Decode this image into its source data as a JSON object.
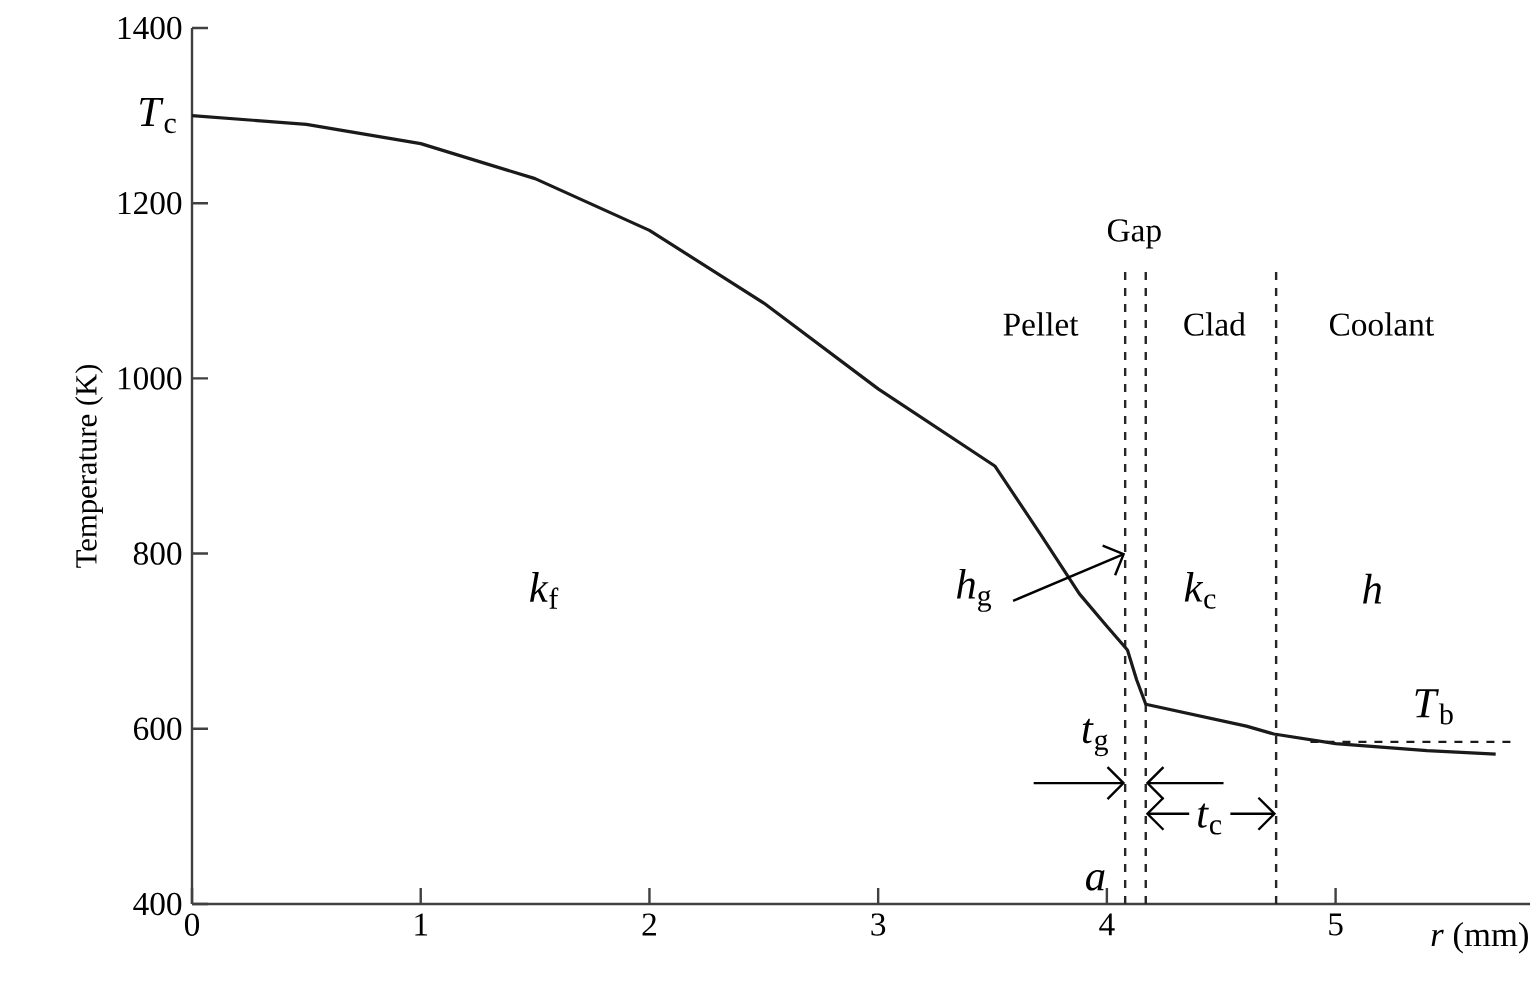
{
  "chart_data": {
    "type": "line",
    "xlabel": "*r* (mm)",
    "ylabel": "Temperature (K)",
    "xlim": [
      0,
      5.85
    ],
    "ylim": [
      400,
      1400
    ],
    "xticks": [
      0,
      1,
      2,
      3,
      4,
      5
    ],
    "yticks": [
      400,
      600,
      800,
      1000,
      1200,
      1400
    ],
    "grid": false,
    "legend": false,
    "marker": "none",
    "series": [
      {
        "color": "#1a1a1a",
        "line_style": "solid",
        "x": [
          0,
          0.5,
          1,
          1.5,
          2,
          2.5,
          3,
          3.51,
          3.71,
          3.88,
          4.0,
          4.09,
          4.13,
          4.17,
          4.61,
          4.73,
          5.0,
          5.4,
          5.7
        ],
        "values": [
          1300,
          1290,
          1268,
          1228,
          1169,
          1086,
          988,
          900,
          822,
          754,
          717,
          690,
          656,
          628,
          603,
          594,
          583,
          575,
          571
        ]
      },
      {
        "color": "#1a1a1a",
        "line_style": "dashed",
        "x": [
          4.89,
          5.77
        ],
        "values": [
          585,
          585
        ]
      }
    ],
    "ref_lines": [
      {
        "axis": "x",
        "value": 4.08,
        "line_style": "dashed"
      },
      {
        "axis": "x",
        "value": 4.17,
        "line_style": "dashed"
      },
      {
        "axis": "x",
        "value": 4.74,
        "line_style": "dashed"
      }
    ],
    "annotations": [
      "*T*$_{c}$",
      "Gap",
      "Pellet",
      "Clad",
      "Coolant",
      "*k*$_{f}$",
      {
        "text": "*h*$_{g}$",
        "x": 4.08,
        "y": 800
      },
      "*k*$_{c}$",
      "*h*",
      "*T*$_{b}$",
      "*t*$_{g}$",
      {
        "text": "*t*$_{c}$",
        "x": 4.74,
        "y": 503
      },
      "*a*"
    ]
  }
}
